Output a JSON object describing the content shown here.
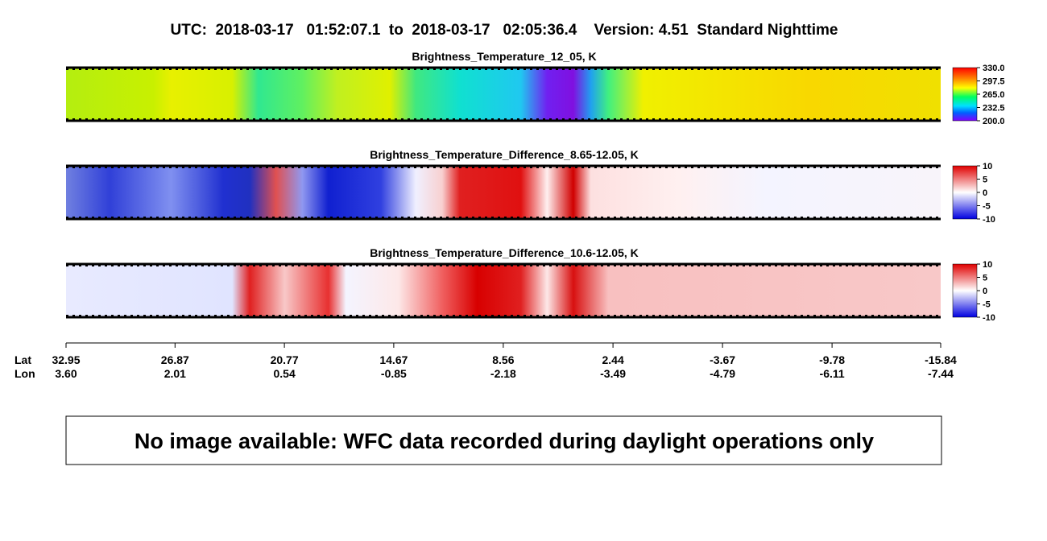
{
  "title": "UTC:  2018-03-17   01:52:07.1  to  2018-03-17   02:05:36.4    Version: 4.51  Standard Nighttime",
  "chart_data": [
    {
      "type": "heatmap",
      "title": "Brightness_Temperature_12_05, K",
      "clim": [
        200,
        330
      ],
      "cticks": [
        {
          "value": 330,
          "label": "330.0"
        },
        297.5,
        {
          "value": 265,
          "label": "265.0"
        },
        232.5,
        {
          "value": 200,
          "label": "200.0"
        }
      ]
    },
    {
      "type": "heatmap",
      "title": "Brightness_Temperature_Difference_8.65-12.05, K",
      "clim": [
        -10,
        10
      ],
      "cticks": [
        10,
        5,
        0,
        -5,
        -10
      ]
    },
    {
      "type": "heatmap",
      "title": "Brightness_Temperature_Difference_10.6-12.05, K",
      "clim": [
        -10,
        10
      ],
      "cticks": [
        10,
        5,
        0,
        -5,
        -10
      ]
    }
  ],
  "x_axis": {
    "lat_label": "Lat",
    "lon_label": "Lon",
    "xlim": [
      32.95,
      -15.84
    ],
    "lat_ticks": [
      32.95,
      26.87,
      20.77,
      14.67,
      8.56,
      2.44,
      -3.67,
      -9.78,
      -15.84
    ],
    "lon_ticks": [
      {
        "value": 3.6,
        "label": "3.60"
      },
      2.01,
      0.54,
      -0.85,
      -2.18,
      -3.49,
      -4.79,
      -6.11,
      -7.44
    ]
  },
  "message": "No image available: WFC data recorded during daylight operations only"
}
